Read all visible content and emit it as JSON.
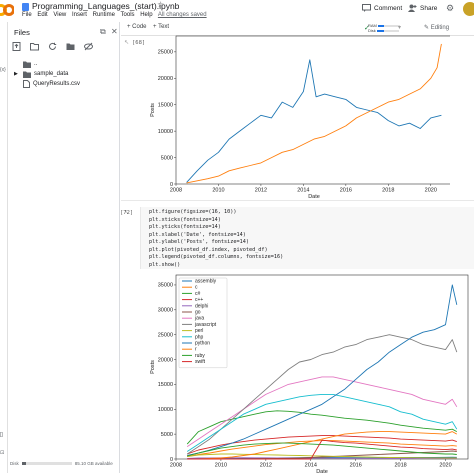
{
  "header": {
    "title": "Programming_Languages_(start).ipynb",
    "menu": [
      "File",
      "Edit",
      "View",
      "Insert",
      "Runtime",
      "Tools",
      "Help"
    ],
    "saved_status": "All changes saved",
    "comment_label": "Comment",
    "share_label": "Share"
  },
  "sidebar": {
    "title": "Files",
    "tree": [
      {
        "name": "..",
        "type": "parent"
      },
      {
        "name": "sample_data",
        "type": "folder"
      },
      {
        "name": "QueryResults.csv",
        "type": "file"
      }
    ],
    "disk_label": "Disk",
    "disk_text": "85.10 GB available",
    "disk_fraction": 0.08,
    "strip_texts": [
      "{x}",
      "[]",
      "⊡"
    ]
  },
  "toolbar": {
    "code_label": "+ Code",
    "text_label": "+ Text",
    "ram_label": "RAM",
    "disk_label": "Disk",
    "ram_fraction": 0.25,
    "disk_fraction": 0.3,
    "editing_label": "Editing"
  },
  "cells": {
    "first_label": "[68]",
    "second_label": "[72]",
    "code_lines": [
      "plt.figure(figsize=(16, 10))",
      "plt.xticks(fontsize=14)",
      "plt.yticks(fontsize=14)",
      "plt.xlabel('Date', fontsize=14)",
      "plt.ylabel('Posts', fontsize=14)",
      "plt.plot(pivoted_df.index, pivoted_df)",
      "plt.legend(pivoted_df.columns, fontsize=16)",
      "plt.show()"
    ]
  },
  "chart_data": [
    {
      "type": "line",
      "xlabel": "Date",
      "ylabel": "Posts",
      "xlim": [
        2008,
        2021
      ],
      "ylim": [
        0,
        28000
      ],
      "xticks": [
        "2008",
        "2010",
        "2012",
        "2014",
        "2016",
        "2018",
        "2020"
      ],
      "yticks": [
        "0",
        "5000",
        "10000",
        "15000",
        "20000",
        "25000"
      ],
      "series": [
        {
          "color": "#1f77b4",
          "x": [
            2008.5,
            2009,
            2009.5,
            2010,
            2010.5,
            2011,
            2011.5,
            2012,
            2012.5,
            2013,
            2013.5,
            2014,
            2014.3,
            2014.6,
            2015,
            2015.5,
            2016,
            2016.5,
            2017,
            2017.5,
            2018,
            2018.5,
            2019,
            2019.5,
            2020,
            2020.5
          ],
          "y": [
            300,
            2500,
            4500,
            6000,
            8500,
            10000,
            11500,
            13000,
            12500,
            15500,
            14500,
            17500,
            23500,
            16500,
            17000,
            16500,
            16000,
            14500,
            14000,
            13500,
            12000,
            11000,
            11500,
            10500,
            12500,
            13000
          ]
        },
        {
          "color": "#ff7f0e",
          "x": [
            2008.5,
            2009,
            2009.5,
            2010,
            2010.5,
            2011,
            2011.5,
            2012,
            2012.5,
            2013,
            2013.5,
            2014,
            2014.5,
            2015,
            2015.5,
            2016,
            2016.5,
            2017,
            2017.5,
            2018,
            2018.5,
            2019,
            2019.5,
            2020,
            2020.3,
            2020.5
          ],
          "y": [
            200,
            600,
            1000,
            1500,
            2500,
            3000,
            3500,
            4000,
            5000,
            6000,
            6500,
            7500,
            8500,
            9000,
            10000,
            11000,
            12500,
            13500,
            14500,
            15500,
            16000,
            17000,
            18000,
            20000,
            22000,
            26500
          ]
        }
      ]
    },
    {
      "type": "line",
      "xlabel": "Date",
      "ylabel": "Posts",
      "xlim": [
        2008,
        2021
      ],
      "ylim": [
        0,
        37000
      ],
      "xticks": [
        "2008",
        "2010",
        "2012",
        "2014",
        "2016",
        "2018",
        "2020"
      ],
      "yticks": [
        "0",
        "5000",
        "10000",
        "15000",
        "20000",
        "25000",
        "30000",
        "35000"
      ],
      "legend_position": "top-left",
      "x": [
        2008.5,
        2009,
        2009.5,
        2010,
        2010.5,
        2011,
        2011.5,
        2012,
        2012.5,
        2013,
        2013.5,
        2014,
        2014.5,
        2015,
        2015.5,
        2016,
        2016.5,
        2017,
        2017.5,
        2018,
        2018.5,
        2019,
        2019.5,
        2020,
        2020.3,
        2020.5
      ],
      "series": [
        {
          "name": "assembly",
          "color": "#1f77b4",
          "values": [
            20,
            60,
            80,
            100,
            120,
            150,
            180,
            200,
            220,
            240,
            260,
            280,
            300,
            320,
            340,
            330,
            320,
            310,
            300,
            290,
            300,
            310,
            320,
            340,
            360,
            350
          ]
        },
        {
          "name": "c",
          "color": "#ff7f0e",
          "values": [
            500,
            900,
            1200,
            1600,
            2000,
            2300,
            2600,
            2900,
            3100,
            3300,
            3500,
            3600,
            3700,
            3700,
            3600,
            3500,
            3400,
            3300,
            3200,
            3000,
            2900,
            2800,
            2700,
            2600,
            2700,
            2600
          ]
        },
        {
          "name": "c#",
          "color": "#2ca02c",
          "values": [
            3000,
            5500,
            6500,
            7500,
            8000,
            8500,
            9000,
            9500,
            9700,
            9600,
            9400,
            9000,
            8800,
            8500,
            8200,
            8000,
            7800,
            7500,
            7200,
            6800,
            6500,
            6200,
            6000,
            5800,
            6000,
            5500
          ]
        },
        {
          "name": "c++",
          "color": "#d62728",
          "values": [
            1000,
            1800,
            2300,
            2800,
            3200,
            3500,
            3800,
            4000,
            4200,
            4400,
            4500,
            4600,
            4700,
            4700,
            4600,
            4500,
            4400,
            4300,
            4200,
            4000,
            3900,
            3800,
            3700,
            3600,
            3800,
            3500
          ]
        },
        {
          "name": "delphi",
          "color": "#9467bd",
          "values": [
            100,
            200,
            220,
            240,
            250,
            260,
            250,
            240,
            230,
            220,
            200,
            180,
            170,
            160,
            150,
            140,
            130,
            120,
            110,
            100,
            95,
            90,
            85,
            80,
            85,
            80
          ]
        },
        {
          "name": "go",
          "color": "#8c564b",
          "values": [
            0,
            0,
            0,
            5,
            20,
            40,
            60,
            80,
            100,
            150,
            200,
            300,
            400,
            500,
            600,
            700,
            800,
            900,
            1000,
            1100,
            1200,
            1300,
            1400,
            1500,
            1600,
            1500
          ]
        },
        {
          "name": "java",
          "color": "#e377c2",
          "values": [
            2500,
            4000,
            5500,
            7000,
            8500,
            10000,
            11500,
            13000,
            14000,
            15000,
            15500,
            16000,
            16500,
            16500,
            16000,
            15500,
            15000,
            14500,
            14000,
            13500,
            13000,
            12000,
            11500,
            11000,
            12000,
            10500
          ]
        },
        {
          "name": "javascript",
          "color": "#7f7f7f",
          "values": [
            1000,
            2500,
            4000,
            6000,
            8000,
            10000,
            12000,
            14000,
            16000,
            18000,
            19500,
            20000,
            21000,
            21500,
            22500,
            23000,
            24000,
            24500,
            25000,
            24500,
            24000,
            23000,
            22500,
            22000,
            24000,
            21500
          ]
        },
        {
          "name": "perl",
          "color": "#bcbd22",
          "values": [
            500,
            800,
            900,
            1000,
            1000,
            950,
            900,
            850,
            800,
            750,
            700,
            650,
            600,
            550,
            500,
            450,
            400,
            350,
            300,
            280,
            260,
            240,
            220,
            200,
            210,
            200
          ]
        },
        {
          "name": "php",
          "color": "#17becf",
          "values": [
            1500,
            3000,
            4500,
            6000,
            7500,
            9000,
            10000,
            11000,
            11500,
            12000,
            12500,
            12800,
            13000,
            13000,
            12500,
            12000,
            11500,
            11000,
            10500,
            9500,
            9000,
            8000,
            7500,
            7000,
            7500,
            6000
          ]
        },
        {
          "name": "python",
          "color": "#1f77b4",
          "values": [
            700,
            1200,
            1800,
            2500,
            3200,
            4000,
            5000,
            6000,
            7000,
            8000,
            9000,
            10000,
            11000,
            12500,
            14000,
            16000,
            18000,
            19500,
            21500,
            23000,
            24500,
            25500,
            26000,
            27000,
            35000,
            31000
          ]
        },
        {
          "name": "r",
          "color": "#ff7f0e",
          "values": [
            0,
            20,
            100,
            200,
            400,
            700,
            1000,
            1500,
            2000,
            2500,
            3000,
            3500,
            4000,
            4500,
            5000,
            5200,
            5400,
            5500,
            5500,
            5400,
            5300,
            5200,
            5100,
            5000,
            5500,
            5000
          ]
        },
        {
          "name": "ruby",
          "color": "#2ca02c",
          "values": [
            600,
            1200,
            1700,
            2200,
            2500,
            2800,
            3000,
            3100,
            3200,
            3200,
            3100,
            3000,
            2900,
            2800,
            2600,
            2400,
            2200,
            2000,
            1800,
            1600,
            1400,
            1200,
            1100,
            1000,
            1000,
            900
          ]
        },
        {
          "name": "swift",
          "color": "#d62728",
          "values": [
            0,
            0,
            0,
            0,
            0,
            0,
            0,
            0,
            0,
            0,
            0,
            0,
            3800,
            3500,
            3300,
            3200,
            3000,
            2800,
            2600,
            2400,
            2300,
            2100,
            2000,
            1900,
            2000,
            1800
          ]
        }
      ]
    }
  ]
}
